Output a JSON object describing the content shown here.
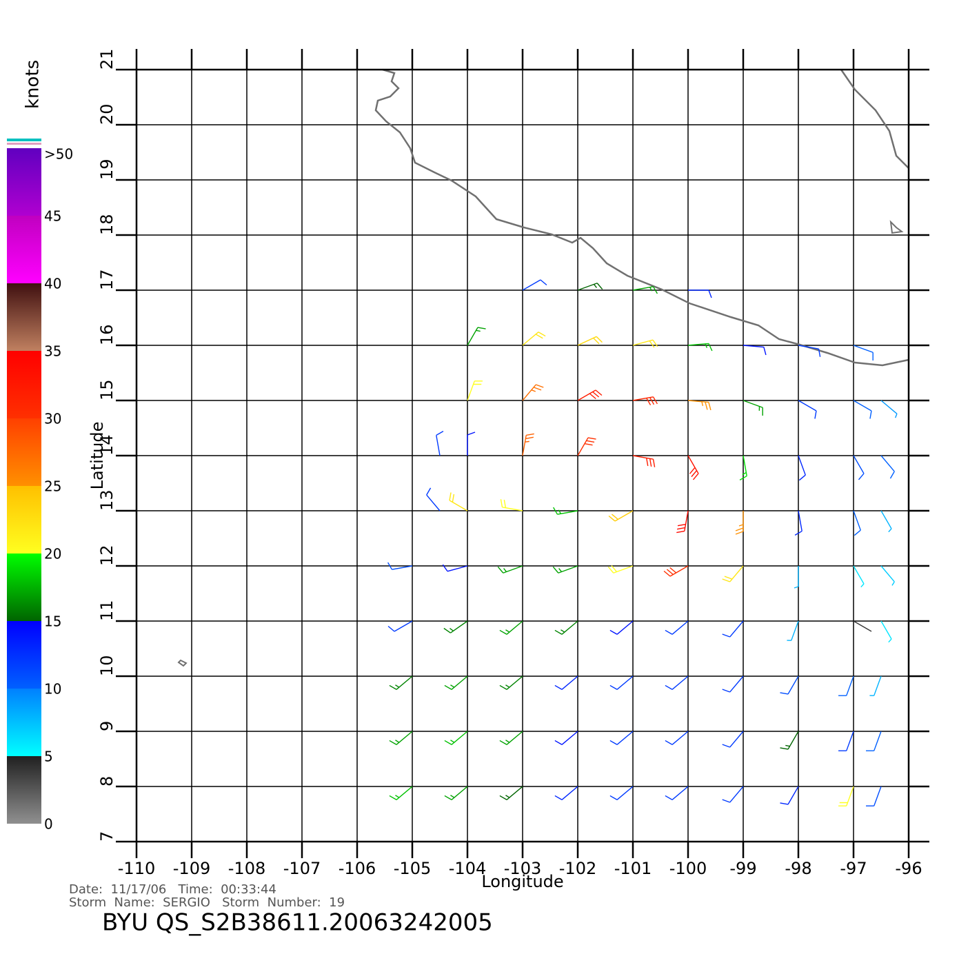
{
  "chart_data": {
    "type": "wind-barb",
    "title": "BYU  QS_S2B38611.20063242005",
    "info": [
      "Date:  11/17/06   Time:  00:33:44",
      "Storm  Name:  SERGIO   Storm  Number:  19"
    ],
    "xlabel": "Longitude",
    "ylabel": "Latitude",
    "xlim": [
      -110,
      -96
    ],
    "ylim": [
      7,
      21
    ],
    "xticks": [
      -110,
      -109,
      -108,
      -107,
      -106,
      -105,
      -104,
      -103,
      -102,
      -101,
      -100,
      -99,
      -98,
      -97,
      -96
    ],
    "yticks": [
      7,
      8,
      9,
      10,
      11,
      12,
      13,
      14,
      15,
      16,
      17,
      18,
      19,
      20,
      21
    ],
    "grid": true,
    "colorbar": {
      "label": "knots",
      "ticks": [
        0,
        5,
        10,
        15,
        20,
        25,
        30,
        35,
        40,
        45,
        {
          "value": 50,
          "label": ">50"
        }
      ],
      "colors": [
        [
          "#909090",
          "#202020"
        ],
        [
          "#00ffff",
          "#0080ff"
        ],
        [
          "#0060ff",
          "#0000ff"
        ],
        [
          "#006400",
          "#00ff00"
        ],
        [
          "#ffff20",
          "#ffc000"
        ],
        [
          "#ff9000",
          "#ff4000"
        ],
        [
          "#ff3000",
          "#ff0000"
        ],
        [
          "#c08060",
          "#401010"
        ],
        [
          "#ff00ff",
          "#c000c0"
        ],
        [
          "#b000d0",
          "#6000c0"
        ]
      ]
    },
    "wind": {
      "lon": [
        -103,
        -102,
        -101,
        -100,
        -104,
        -103,
        -102,
        -101,
        -100,
        -99,
        -98,
        -97,
        -104,
        -103,
        -102,
        -101,
        -100,
        -99,
        -98,
        -97,
        -96.5,
        -104.5,
        -104,
        -103,
        -102,
        -101,
        -100,
        -99,
        -98,
        -97,
        -96.5,
        -104.5,
        -104,
        -103,
        -102,
        -101,
        -100,
        -99,
        -98,
        -97,
        -96.5,
        -105,
        -104,
        -103,
        -102,
        -101,
        -100,
        -99,
        -98,
        -97,
        -96.5,
        -105,
        -104,
        -103,
        -102,
        -101,
        -100,
        -99,
        -98,
        -97,
        -96.5,
        -105,
        -104,
        -103,
        -102,
        -101,
        -100,
        -99,
        -98,
        -97,
        -96.5,
        -105,
        -104,
        -103,
        -102,
        -101,
        -100,
        -99,
        -98,
        -97,
        -96.5,
        -105,
        -104,
        -103,
        -102,
        -101,
        -100,
        -99,
        -98,
        -97,
        -96.5
      ],
      "lat": [
        17,
        17,
        17,
        17,
        16,
        16,
        16,
        16,
        16,
        16,
        16,
        16,
        15,
        15,
        15,
        15,
        15,
        15,
        15,
        15,
        15,
        14,
        14,
        14,
        14,
        14,
        14,
        14,
        14,
        14,
        14,
        13,
        13,
        13,
        13,
        13,
        13,
        13,
        13,
        13,
        13,
        12,
        12,
        12,
        12,
        12,
        12,
        12,
        12,
        12,
        12,
        11,
        11,
        11,
        11,
        11,
        11,
        11,
        11,
        11,
        11,
        10,
        10,
        10,
        10,
        10,
        10,
        10,
        10,
        10,
        10,
        9,
        9,
        9,
        9,
        9,
        9,
        9,
        9,
        9,
        9,
        8,
        8,
        8,
        8,
        8,
        8,
        8,
        8,
        8,
        8
      ],
      "speed": [
        12,
        15,
        17,
        13,
        17,
        22,
        23,
        22,
        18,
        14,
        12,
        10,
        20,
        27,
        32,
        31,
        25,
        17,
        12,
        10,
        9,
        12,
        14,
        28,
        30,
        32,
        33,
        19,
        13,
        11,
        10,
        12,
        22,
        20,
        18,
        24,
        34,
        25,
        13,
        10,
        8,
        11,
        14,
        17,
        17,
        20,
        30,
        22,
        8,
        6,
        7,
        12,
        16,
        17,
        16,
        14,
        12,
        12,
        8,
        4,
        6,
        16,
        17,
        16,
        13,
        12,
        12,
        12,
        11,
        10,
        8,
        17,
        18,
        17,
        14,
        12,
        12,
        12,
        15,
        12,
        10,
        18,
        17,
        15,
        13,
        12,
        12,
        12,
        13,
        20,
        11
      ],
      "direction": [
        60,
        70,
        80,
        90,
        30,
        50,
        65,
        75,
        85,
        95,
        100,
        110,
        20,
        40,
        60,
        80,
        95,
        110,
        120,
        120,
        130,
        350,
        0,
        10,
        30,
        100,
        150,
        170,
        160,
        150,
        140,
        320,
        300,
        280,
        260,
        240,
        190,
        180,
        170,
        160,
        150,
        260,
        255,
        250,
        250,
        250,
        240,
        220,
        180,
        150,
        140,
        240,
        235,
        230,
        230,
        230,
        230,
        220,
        200,
        120,
        150,
        230,
        230,
        230,
        230,
        230,
        230,
        220,
        210,
        200,
        200,
        230,
        230,
        230,
        230,
        230,
        230,
        220,
        210,
        200,
        200,
        230,
        230,
        230,
        230,
        230,
        230,
        220,
        210,
        200,
        200
      ]
    }
  }
}
